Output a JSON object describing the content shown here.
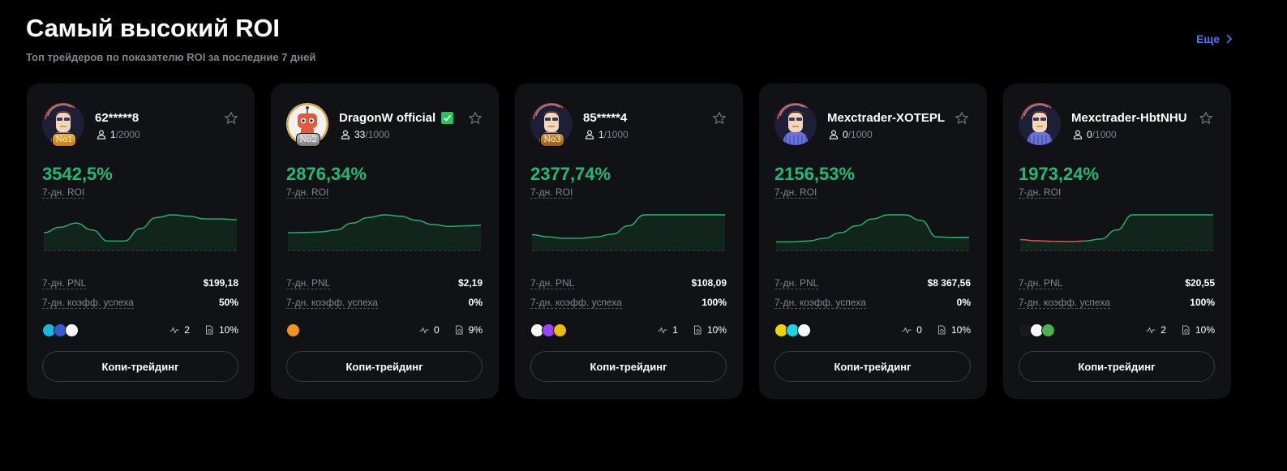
{
  "header": {
    "title": "Самый высокий ROI",
    "subtitle": "Топ трейдеров по показателю ROI за последние 7 дней",
    "more_label": "Еще"
  },
  "labels": {
    "roi": "7-дн. ROI",
    "pnl": "7-дн. PNL",
    "win_rate": "7-дн. коэфф. успеха",
    "copy_button": "Копи-трейдинг"
  },
  "colors": {
    "accent_green": "#1fbb75",
    "link_blue": "#3d7bff",
    "card_bg": "#111216",
    "loss_red": "#e5484d"
  },
  "traders": [
    {
      "name": "62*****8",
      "rank": "No1",
      "followers": "1",
      "max_followers": "/2000",
      "roi": "3542,5%",
      "pnl": "$199,18",
      "win_rate": "50%",
      "positions": "2",
      "profit_share": "10%",
      "verified": false,
      "avatar": "trader-avatar",
      "coins": [
        "#14b8d8",
        "#2f5bd9",
        "#ffffff"
      ],
      "roi_curve": [
        0.35,
        0.55,
        0.7,
        0.45,
        0.05,
        0.05,
        0.5,
        0.9,
        1.0,
        0.95,
        0.85,
        0.85,
        0.82
      ]
    },
    {
      "name": "DragonW official",
      "rank": "No2",
      "followers": "33",
      "max_followers": "/1000",
      "roi": "2876,34%",
      "pnl": "$2,19",
      "win_rate": "0%",
      "positions": "0",
      "profit_share": "9%",
      "verified": true,
      "avatar": "robot-avatar",
      "coins": [
        "#f7931a"
      ],
      "roi_curve": [
        0.35,
        0.36,
        0.38,
        0.45,
        0.7,
        0.9,
        1.0,
        0.95,
        0.8,
        0.65,
        0.58,
        0.6,
        0.62
      ]
    },
    {
      "name": "85*****4",
      "rank": "No3",
      "followers": "1",
      "max_followers": "/1000",
      "roi": "2377,74%",
      "pnl": "$108,09",
      "win_rate": "100%",
      "positions": "1",
      "profit_share": "10%",
      "verified": false,
      "avatar": "trader-avatar",
      "coins": [
        "#ffffff",
        "#9945ff",
        "#f0b90b"
      ],
      "roi_curve": [
        0.28,
        0.2,
        0.15,
        0.15,
        0.2,
        0.3,
        0.6,
        1.0,
        1.0,
        1.0,
        1.0,
        1.0,
        1.0
      ]
    },
    {
      "name": "Mexctrader-XOTEPL",
      "rank": "",
      "followers": "0",
      "max_followers": "/1000",
      "roi": "2156,53%",
      "pnl": "$8 367,56",
      "win_rate": "0%",
      "positions": "0",
      "profit_share": "10%",
      "verified": false,
      "avatar": "trader-avatar",
      "coins": [
        "#f0d200",
        "#1dd3e3",
        "#ffffff"
      ],
      "roi_curve": [
        0.02,
        0.02,
        0.05,
        0.15,
        0.35,
        0.6,
        0.85,
        1.0,
        1.0,
        0.8,
        0.2,
        0.18,
        0.18
      ]
    },
    {
      "name": "Mexctrader-HbtNHU",
      "rank": "",
      "followers": "0",
      "max_followers": "/1000",
      "roi": "1973,24%",
      "pnl": "$20,55",
      "win_rate": "100%",
      "positions": "2",
      "profit_share": "10%",
      "verified": false,
      "avatar": "trader-avatar",
      "coins": [
        "#1a1a1a",
        "#ffffff",
        "#4caf50"
      ],
      "roi_curve": [
        0.1,
        0.06,
        0.04,
        0.03,
        0.05,
        0.12,
        0.45,
        1.0,
        1.0,
        1.0,
        1.0,
        1.0,
        1.0
      ],
      "loss_segments": 4
    }
  ]
}
